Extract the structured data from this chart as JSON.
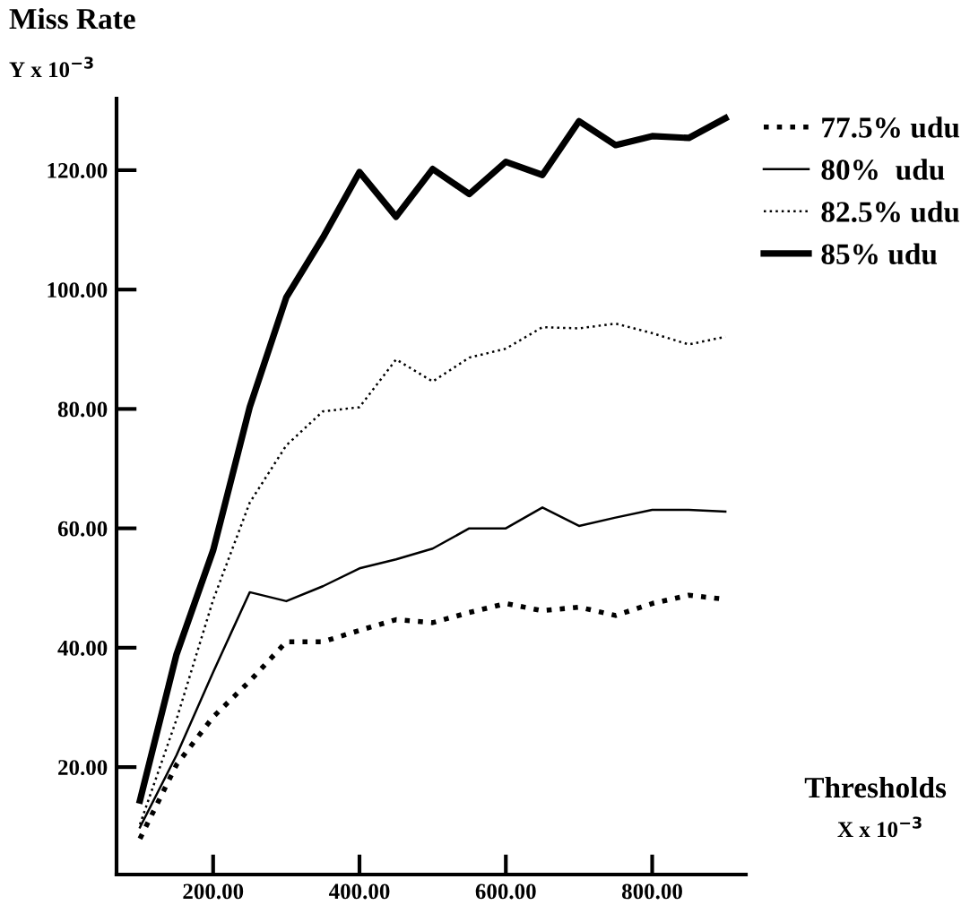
{
  "chart_data": {
    "type": "line",
    "ylabel": "Miss Rate",
    "xlabel": "Thresholds",
    "annotations": [
      "Y x 10$^{−3}$",
      "X x 10$^{−3}$"
    ],
    "x": [
      100,
      150,
      200,
      250,
      300,
      350,
      400,
      450,
      500,
      550,
      600,
      650,
      700,
      750,
      800,
      850,
      900
    ],
    "series": [
      {
        "name": "77.5% udu",
        "color": "#000000",
        "line_style": "dotted",
        "values": [
          8.0,
          20.4,
          28.4,
          34.4,
          41.0,
          41.0,
          42.9,
          44.7,
          44.2,
          45.9,
          47.4,
          46.2,
          46.8,
          45.4,
          47.4,
          48.8,
          48.1
        ]
      },
      {
        "name": "80%  udu",
        "color": "#000000",
        "line_style": "solid",
        "values": [
          9.9,
          22.0,
          35.9,
          49.3,
          47.8,
          50.3,
          53.3,
          54.8,
          56.6,
          60.0,
          60.0,
          63.5,
          60.4,
          61.8,
          63.1,
          63.1,
          62.8
        ]
      },
      {
        "name": "82.5% udu",
        "color": "#000000",
        "line_style": "dotted",
        "values": [
          10.4,
          28.0,
          48.0,
          64.3,
          73.9,
          79.6,
          80.3,
          88.3,
          84.6,
          88.6,
          90.1,
          93.7,
          93.5,
          94.3,
          92.7,
          90.8,
          92.1
        ]
      },
      {
        "name": "85% udu",
        "color": "#000000",
        "line_style": "solid",
        "values": [
          14.4,
          38.9,
          56.3,
          80.3,
          98.7,
          108.7,
          119.7,
          112.2,
          120.2,
          116.0,
          121.4,
          119.2,
          128.2,
          124.2,
          125.7,
          125.4,
          128.7
        ]
      }
    ],
    "xlim": [
      68,
      928
    ],
    "ylim": [
      2,
      132
    ],
    "xticks": [
      {
        "value": 200,
        "label": "200.00"
      },
      {
        "value": 400,
        "label": "400.00"
      },
      {
        "value": 600,
        "label": "600.00"
      },
      {
        "value": 800,
        "label": "800.00"
      }
    ],
    "yticks": [
      {
        "value": 20,
        "label": "20.00"
      },
      {
        "value": 40,
        "label": "40.00"
      },
      {
        "value": 60,
        "label": "60.00"
      },
      {
        "value": 80,
        "label": "80.00"
      },
      {
        "value": 100,
        "label": "100.00"
      },
      {
        "value": 120,
        "label": "120.00"
      }
    ],
    "legend": "top right",
    "grid": false
  }
}
